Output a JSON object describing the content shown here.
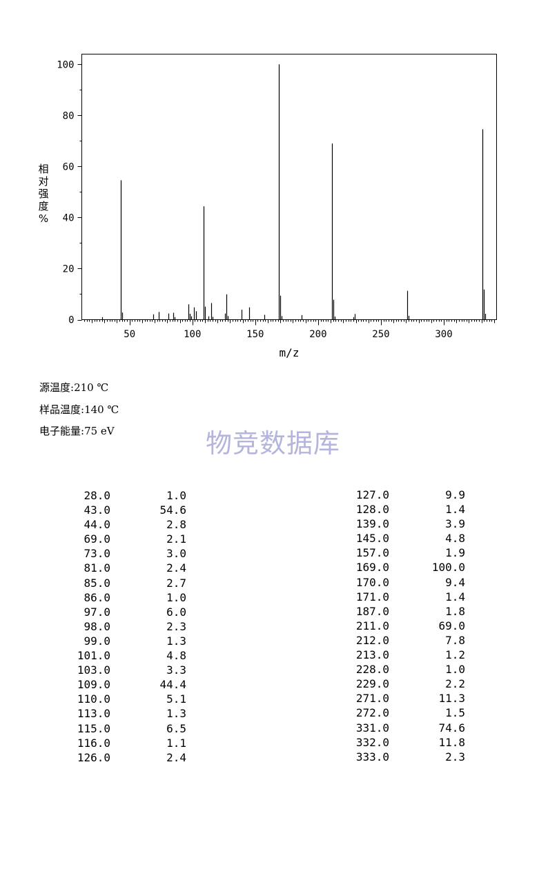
{
  "chart_data": {
    "type": "bar",
    "xlabel": "m/z",
    "ylabel": "相对强度 %",
    "xlim": [
      12,
      342
    ],
    "ylim": [
      0,
      104
    ],
    "x_ticks": [
      50,
      100,
      150,
      200,
      250,
      300
    ],
    "y_ticks": [
      0,
      20,
      40,
      60,
      80,
      100
    ],
    "peaks": [
      {
        "mz": 28.0,
        "intensity": 1.0
      },
      {
        "mz": 43.0,
        "intensity": 54.6
      },
      {
        "mz": 44.0,
        "intensity": 2.8
      },
      {
        "mz": 69.0,
        "intensity": 2.1
      },
      {
        "mz": 73.0,
        "intensity": 3.0
      },
      {
        "mz": 81.0,
        "intensity": 2.4
      },
      {
        "mz": 85.0,
        "intensity": 2.7
      },
      {
        "mz": 86.0,
        "intensity": 1.0
      },
      {
        "mz": 97.0,
        "intensity": 6.0
      },
      {
        "mz": 98.0,
        "intensity": 2.3
      },
      {
        "mz": 99.0,
        "intensity": 1.3
      },
      {
        "mz": 101.0,
        "intensity": 4.8
      },
      {
        "mz": 103.0,
        "intensity": 3.3
      },
      {
        "mz": 109.0,
        "intensity": 44.4
      },
      {
        "mz": 110.0,
        "intensity": 5.1
      },
      {
        "mz": 113.0,
        "intensity": 1.3
      },
      {
        "mz": 115.0,
        "intensity": 6.5
      },
      {
        "mz": 116.0,
        "intensity": 1.1
      },
      {
        "mz": 126.0,
        "intensity": 2.4
      },
      {
        "mz": 127.0,
        "intensity": 9.9
      },
      {
        "mz": 128.0,
        "intensity": 1.4
      },
      {
        "mz": 139.0,
        "intensity": 3.9
      },
      {
        "mz": 145.0,
        "intensity": 4.8
      },
      {
        "mz": 157.0,
        "intensity": 1.9
      },
      {
        "mz": 169.0,
        "intensity": 100.0
      },
      {
        "mz": 170.0,
        "intensity": 9.4
      },
      {
        "mz": 171.0,
        "intensity": 1.4
      },
      {
        "mz": 187.0,
        "intensity": 1.8
      },
      {
        "mz": 211.0,
        "intensity": 69.0
      },
      {
        "mz": 212.0,
        "intensity": 7.8
      },
      {
        "mz": 213.0,
        "intensity": 1.2
      },
      {
        "mz": 228.0,
        "intensity": 1.0
      },
      {
        "mz": 229.0,
        "intensity": 2.2
      },
      {
        "mz": 271.0,
        "intensity": 11.3
      },
      {
        "mz": 272.0,
        "intensity": 1.5
      },
      {
        "mz": 331.0,
        "intensity": 74.6
      },
      {
        "mz": 332.0,
        "intensity": 11.8
      },
      {
        "mz": 333.0,
        "intensity": 2.3
      }
    ]
  },
  "conditions": {
    "source_temp": {
      "label": "源温度:",
      "value": "210 ℃"
    },
    "sample_temp": {
      "label": "样品温度:",
      "value": "140 ℃"
    },
    "electron_energy": {
      "label": "电子能量:",
      "value": "75 eV"
    }
  },
  "watermark": "物竞数据库",
  "table": {
    "left": [
      [
        "28.0",
        "1.0"
      ],
      [
        "43.0",
        "54.6"
      ],
      [
        "44.0",
        "2.8"
      ],
      [
        "69.0",
        "2.1"
      ],
      [
        "73.0",
        "3.0"
      ],
      [
        "81.0",
        "2.4"
      ],
      [
        "85.0",
        "2.7"
      ],
      [
        "86.0",
        "1.0"
      ],
      [
        "97.0",
        "6.0"
      ],
      [
        "98.0",
        "2.3"
      ],
      [
        "99.0",
        "1.3"
      ],
      [
        "101.0",
        "4.8"
      ],
      [
        "103.0",
        "3.3"
      ],
      [
        "109.0",
        "44.4"
      ],
      [
        "110.0",
        "5.1"
      ],
      [
        "113.0",
        "1.3"
      ],
      [
        "115.0",
        "6.5"
      ],
      [
        "116.0",
        "1.1"
      ],
      [
        "126.0",
        "2.4"
      ]
    ],
    "right": [
      [
        "127.0",
        "9.9"
      ],
      [
        "128.0",
        "1.4"
      ],
      [
        "139.0",
        "3.9"
      ],
      [
        "145.0",
        "4.8"
      ],
      [
        "157.0",
        "1.9"
      ],
      [
        "169.0",
        "100.0"
      ],
      [
        "170.0",
        "9.4"
      ],
      [
        "171.0",
        "1.4"
      ],
      [
        "187.0",
        "1.8"
      ],
      [
        "211.0",
        "69.0"
      ],
      [
        "212.0",
        "7.8"
      ],
      [
        "213.0",
        "1.2"
      ],
      [
        "228.0",
        "1.0"
      ],
      [
        "229.0",
        "2.2"
      ],
      [
        "271.0",
        "11.3"
      ],
      [
        "272.0",
        "1.5"
      ],
      [
        "331.0",
        "74.6"
      ],
      [
        "332.0",
        "11.8"
      ],
      [
        "333.0",
        "2.3"
      ]
    ]
  }
}
